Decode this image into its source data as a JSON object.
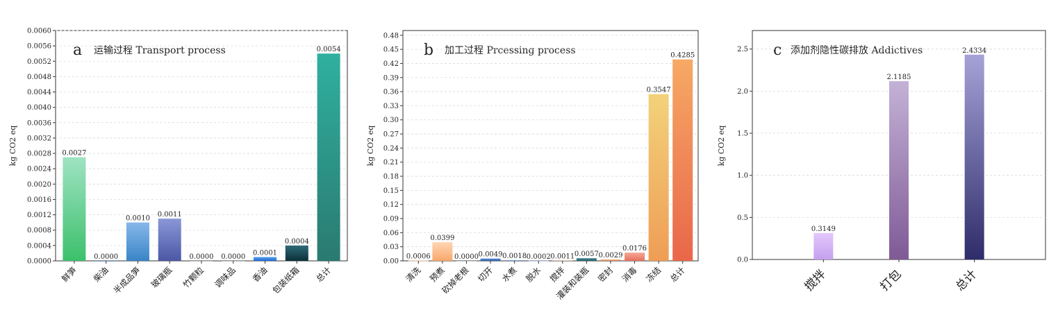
{
  "chart_data": [
    {
      "type": "bar",
      "panel_letter": "a",
      "title": "运输过程 Transport process",
      "ylabel": "kg CO2 eq",
      "ylim": [
        0,
        0.006
      ],
      "ytick_step": 0.0004,
      "ytick_decimals": 4,
      "categories": [
        "鲜笋",
        "柴油",
        "半成品笋",
        "玻璃瓶",
        "竹颗粒",
        "调味品",
        "香油",
        "包装纸箱",
        "总计"
      ],
      "values": [
        0.0027,
        0.0,
        0.001,
        0.0011,
        0.0,
        0.0,
        0.0001,
        0.0004,
        0.0054
      ],
      "value_labels": [
        "0.0027",
        "0.0000",
        "0.0010",
        "0.0011",
        "0.0000",
        "0.0000",
        "0.0001",
        "0.0004",
        "0.0054"
      ],
      "colors": [
        [
          "#9fe3c3",
          "#3cc06b"
        ],
        [
          "#8fb0d9",
          "#2f6ea8"
        ],
        [
          "#86b8ea",
          "#3a84c7"
        ],
        [
          "#8a97d6",
          "#4c57a6"
        ],
        [
          "#cccccc",
          "#999999"
        ],
        [
          "#cccccc",
          "#999999"
        ],
        [
          "#5aa0ef",
          "#1d6ad4"
        ],
        [
          "#2f6a78",
          "#0b3038"
        ],
        [
          "#2fb0a0",
          "#2a7a70"
        ]
      ],
      "grid": true,
      "legend": "none"
    },
    {
      "type": "bar",
      "panel_letter": "b",
      "title": "加工过程  Prcessing process",
      "ylabel": "kg CO2 eq",
      "ylim": [
        0,
        0.49
      ],
      "ytick_step": 0.03,
      "ytick_decimals": 2,
      "categories": [
        "清洗",
        "预煮",
        "砍掉老根",
        "切开",
        "水煮",
        "脱水",
        "搅拌",
        "灌装和装瓶",
        "密封",
        "消毒",
        "冻结",
        "总计"
      ],
      "values": [
        0.0006,
        0.0399,
        0.0,
        0.0049,
        0.0018,
        0.0002,
        0.0011,
        0.0057,
        0.0029,
        0.0176,
        0.3547,
        0.4285
      ],
      "value_labels": [
        "0.0006",
        "0.0399",
        "0.0000",
        "0.0049",
        "0.0018",
        "0.0002",
        "0.0011",
        "0.0057",
        "0.0029",
        "0.0176",
        "0.3547",
        "0.4285"
      ],
      "colors": [
        [
          "#f6d2b4",
          "#eeb382"
        ],
        [
          "#ffd6b5",
          "#f9a86a"
        ],
        [
          "#dddddd",
          "#aaaaaa"
        ],
        [
          "#5b8fd6",
          "#2a5fa8"
        ],
        [
          "#a9c4e8",
          "#5f88c0"
        ],
        [
          "#c9d8ee",
          "#92add4"
        ],
        [
          "#e7c7a8",
          "#c99b70"
        ],
        [
          "#4a8c98",
          "#235f6a"
        ],
        [
          "#f2b888",
          "#e07c45"
        ],
        [
          "#f5a99a",
          "#e7705c"
        ],
        [
          "#f2d27a",
          "#ef9d55"
        ],
        [
          "#f6a965",
          "#e9674a"
        ]
      ],
      "grid": true,
      "legend": "none"
    },
    {
      "type": "bar",
      "panel_letter": "c",
      "title": "添加剂隐性碳排放 Addictives",
      "ylabel": "kg CO2 eq",
      "ylim": [
        0,
        2.72
      ],
      "ytick_step": 0.5,
      "ytick_decimals": 1,
      "categories": [
        "搅拌",
        "打包",
        "总计"
      ],
      "values": [
        0.3149,
        2.1185,
        2.4334
      ],
      "value_labels": [
        "0.3149",
        "2.1185",
        "2.4334"
      ],
      "colors": [
        [
          "#e2c7fb",
          "#c6a0f0"
        ],
        [
          "#c4b2d6",
          "#7f5a96"
        ],
        [
          "#a4a2d6",
          "#2f2c6a"
        ]
      ],
      "grid": true,
      "legend": "none"
    }
  ]
}
